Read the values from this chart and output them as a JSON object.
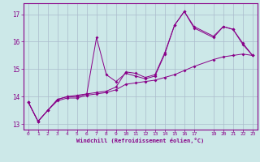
{
  "xlabel": "Windchill (Refroidissement éolien,°C)",
  "bg_color": "#cce8e8",
  "line_color": "#880088",
  "grid_color": "#aabbcc",
  "xlim": [
    -0.5,
    23.5
  ],
  "ylim": [
    12.8,
    17.4
  ],
  "xticks": [
    0,
    1,
    2,
    3,
    4,
    5,
    6,
    7,
    8,
    9,
    10,
    11,
    12,
    13,
    14,
    15,
    16,
    17,
    19,
    20,
    21,
    22,
    23
  ],
  "yticks": [
    13,
    14,
    15,
    16,
    17
  ],
  "line1_x": [
    0,
    1,
    2,
    3,
    4,
    5,
    6,
    7,
    8,
    9,
    10,
    11,
    12,
    13,
    14,
    15,
    16,
    17,
    19,
    20,
    21,
    22,
    23
  ],
  "line1_y": [
    13.8,
    13.1,
    13.5,
    13.9,
    14.0,
    14.05,
    14.1,
    14.15,
    14.2,
    14.35,
    14.9,
    14.85,
    14.7,
    14.8,
    15.6,
    16.6,
    17.1,
    16.55,
    16.2,
    16.55,
    16.45,
    15.95,
    15.5
  ],
  "line2_x": [
    0,
    1,
    2,
    3,
    4,
    5,
    6,
    7,
    8,
    9,
    10,
    11,
    12,
    13,
    14,
    15,
    16,
    17,
    19,
    20,
    21,
    22,
    23
  ],
  "line2_y": [
    13.8,
    13.1,
    13.5,
    13.9,
    14.0,
    14.0,
    14.1,
    16.15,
    14.8,
    14.55,
    14.85,
    14.75,
    14.65,
    14.75,
    15.55,
    16.6,
    17.1,
    16.5,
    16.15,
    16.55,
    16.45,
    15.9,
    15.5
  ],
  "line3_x": [
    0,
    1,
    2,
    3,
    4,
    5,
    6,
    7,
    8,
    9,
    10,
    11,
    12,
    13,
    14,
    15,
    16,
    17,
    19,
    20,
    21,
    22,
    23
  ],
  "line3_y": [
    13.8,
    13.1,
    13.5,
    13.85,
    13.95,
    13.95,
    14.05,
    14.1,
    14.15,
    14.25,
    14.45,
    14.5,
    14.55,
    14.6,
    14.7,
    14.8,
    14.95,
    15.1,
    15.35,
    15.45,
    15.5,
    15.55,
    15.5
  ]
}
